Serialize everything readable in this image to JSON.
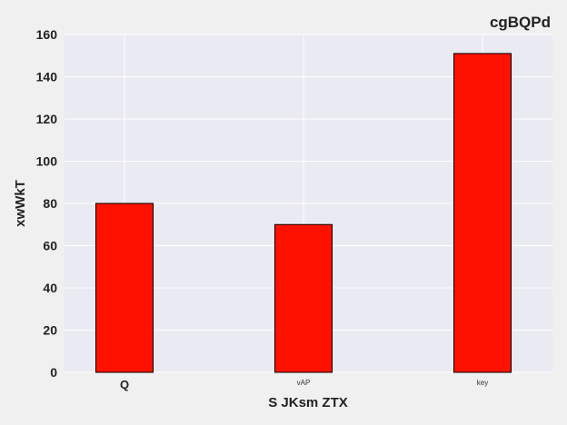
{
  "chart_data": {
    "type": "bar",
    "title": "cgBQPd",
    "xlabel": "S JKsm ZTX",
    "ylabel": "xwWkT",
    "categories": [
      "Q",
      "vAP",
      "key"
    ],
    "values": [
      80,
      70,
      151
    ],
    "ylim": [
      0,
      160
    ],
    "yticks": [
      0,
      20,
      40,
      60,
      80,
      100,
      120,
      140,
      160
    ],
    "grid": true,
    "colors": {
      "bar": "#ff1100",
      "bar_edge": "#000000",
      "plot_background": "#eaeaf2",
      "grid": "#ffffff"
    }
  }
}
